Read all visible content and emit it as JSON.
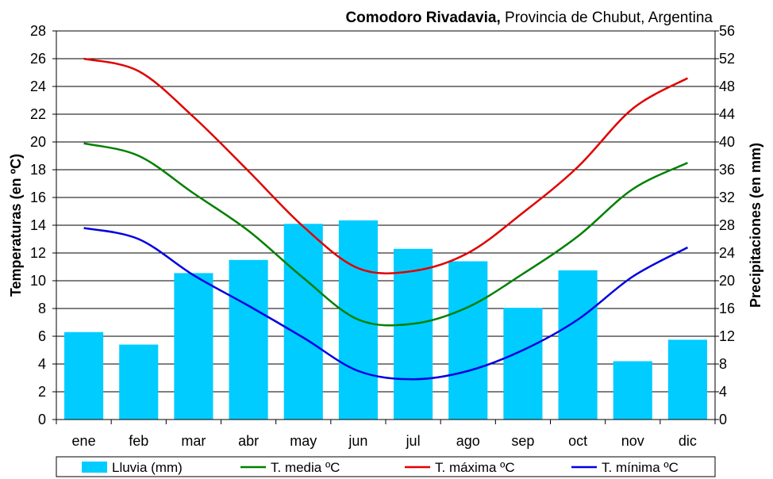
{
  "chart_data": {
    "type": "bar+line",
    "title_bold": "Comodoro Rivadavia,",
    "title_rest": " Provincia de Chubut, Argentina",
    "categories": [
      "ene",
      "feb",
      "mar",
      "abr",
      "may",
      "jun",
      "jul",
      "ago",
      "sep",
      "oct",
      "nov",
      "dic"
    ],
    "y_left": {
      "label": "Temperaturas (en ºC)",
      "min": 0,
      "max": 28,
      "step": 2
    },
    "y_right": {
      "label": "Precipitaciones (en mm)",
      "min": 0,
      "max": 56,
      "step": 4
    },
    "grid": true,
    "legend_position": "bottom",
    "bars": {
      "name": "Lluvia (mm)",
      "color": "#00ccff",
      "axis": "right",
      "values": [
        12.6,
        10.8,
        21.1,
        23.0,
        28.2,
        28.7,
        24.6,
        22.8,
        16.1,
        21.5,
        8.4,
        11.5
      ]
    },
    "lines": [
      {
        "name": "T. media ºC",
        "color": "#008000",
        "axis": "left",
        "values": [
          19.9,
          19.0,
          16.3,
          13.6,
          10.2,
          7.2,
          6.9,
          8.1,
          10.5,
          13.2,
          16.6,
          18.5
        ]
      },
      {
        "name": "T. máxima ºC",
        "color": "#e00000",
        "axis": "left",
        "values": [
          26.0,
          25.1,
          21.8,
          17.9,
          13.9,
          10.9,
          10.7,
          12.0,
          14.9,
          18.2,
          22.4,
          24.6
        ]
      },
      {
        "name": "T. mínima ºC",
        "color": "#0000e0",
        "axis": "left",
        "values": [
          13.8,
          13.0,
          10.4,
          8.2,
          5.9,
          3.5,
          2.9,
          3.5,
          5.0,
          7.2,
          10.3,
          12.4
        ]
      }
    ]
  }
}
